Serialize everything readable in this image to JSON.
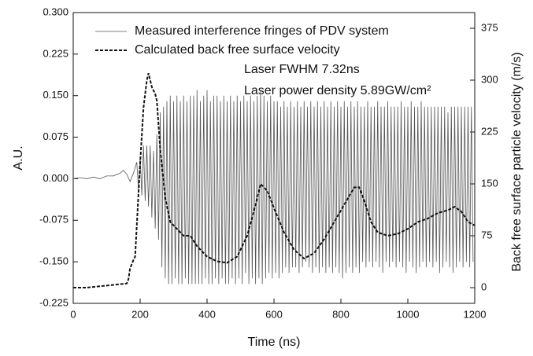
{
  "chart_data": {
    "type": "line",
    "xlabel": "Time (ns)",
    "ylabel": "A.U.",
    "y2label": "Back free surface particle velocity (m/s)",
    "annotations": [
      "Laser FWHM 7.32ns",
      "Laser power density 5.89GW/cm²"
    ],
    "xlim": [
      0,
      1200
    ],
    "xticks": [
      0,
      200,
      400,
      600,
      800,
      1000,
      1200
    ],
    "ylim": [
      -0.225,
      0.3
    ],
    "yticks": [
      -0.225,
      {
        "value": -0.15,
        "label": "-0.150"
      },
      -0.075,
      {
        "value": 0,
        "label": "0.000"
      },
      0.075,
      {
        "value": 0.15,
        "label": "0.150"
      },
      0.225,
      {
        "value": 0.3,
        "label": "0.300"
      }
    ],
    "y2lim": [
      -22.7,
      397.7
    ],
    "y2ticks": [
      0,
      75,
      150,
      225,
      300,
      375
    ],
    "legend": "upper left",
    "series": [
      {
        "name": "Measured interference fringes of PDV system",
        "color": "#555555",
        "dashed": false,
        "axis": "y",
        "x": [
          0,
          20,
          40,
          60,
          80,
          100,
          120,
          140,
          150,
          160,
          170,
          180,
          190,
          195,
          200,
          205,
          210,
          215,
          220,
          225,
          230,
          235,
          240,
          245,
          250,
          255,
          260,
          265,
          270,
          275,
          280,
          285,
          290,
          295,
          300,
          305,
          310,
          315,
          320,
          325,
          330,
          335,
          340,
          345,
          350,
          355,
          360,
          365,
          370,
          375,
          380,
          385,
          390,
          395,
          400,
          405,
          410,
          415,
          420,
          425,
          430,
          435,
          440,
          445,
          450,
          455,
          460,
          465,
          470,
          475,
          480,
          485,
          490,
          495,
          500,
          505,
          510,
          515,
          520,
          525,
          530,
          535,
          540,
          545,
          550,
          555,
          560,
          565,
          570,
          575,
          580,
          585,
          590,
          595,
          600,
          605,
          610,
          615,
          620,
          625,
          630,
          635,
          640,
          645,
          650,
          655,
          660,
          665,
          670,
          675,
          680,
          685,
          690,
          695,
          700,
          705,
          710,
          715,
          720,
          725,
          730,
          735,
          740,
          745,
          750,
          755,
          760,
          765,
          770,
          775,
          780,
          785,
          790,
          795,
          800,
          805,
          810,
          815,
          820,
          825,
          830,
          835,
          840,
          845,
          850,
          855,
          860,
          865,
          870,
          875,
          880,
          885,
          890,
          895,
          900,
          905,
          910,
          915,
          920,
          925,
          930,
          935,
          940,
          945,
          950,
          955,
          960,
          965,
          970,
          975,
          980,
          985,
          990,
          995,
          1000,
          1005,
          1010,
          1015,
          1020,
          1025,
          1030,
          1035,
          1040,
          1045,
          1050,
          1055,
          1060,
          1065,
          1070,
          1075,
          1080,
          1085,
          1090,
          1095,
          1100,
          1105,
          1110,
          1115,
          1120,
          1125,
          1130,
          1135,
          1140,
          1145,
          1150,
          1155,
          1160,
          1165,
          1170,
          1175,
          1180,
          1185,
          1190,
          1195
        ],
        "values": [
          0.0,
          0.002,
          0.0,
          0.003,
          0.0,
          0.005,
          0.005,
          0.01,
          0.015,
          0.008,
          -0.005,
          0.01,
          0.03,
          -0.02,
          0.04,
          -0.03,
          0.06,
          -0.04,
          0.06,
          -0.05,
          0.06,
          -0.07,
          0.05,
          -0.09,
          0.08,
          -0.11,
          0.12,
          -0.16,
          0.13,
          -0.18,
          0.14,
          -0.19,
          0.15,
          -0.19,
          0.14,
          -0.18,
          0.15,
          -0.19,
          0.14,
          -0.19,
          0.15,
          -0.18,
          0.14,
          -0.19,
          0.15,
          -0.19,
          0.15,
          -0.19,
          0.16,
          -0.19,
          0.14,
          -0.19,
          0.15,
          -0.18,
          0.16,
          -0.19,
          0.14,
          -0.19,
          0.15,
          -0.18,
          0.15,
          -0.19,
          0.14,
          -0.18,
          0.15,
          -0.19,
          0.14,
          -0.19,
          0.15,
          -0.18,
          0.14,
          -0.19,
          0.15,
          -0.18,
          0.14,
          -0.19,
          0.15,
          -0.17,
          0.14,
          -0.19,
          0.15,
          -0.18,
          0.14,
          -0.19,
          0.15,
          -0.18,
          0.16,
          -0.19,
          0.15,
          -0.18,
          0.14,
          -0.17,
          0.15,
          -0.18,
          0.14,
          -0.17,
          0.14,
          -0.18,
          0.13,
          -0.17,
          0.14,
          -0.16,
          0.13,
          -0.17,
          0.14,
          -0.16,
          0.13,
          -0.16,
          0.14,
          -0.17,
          0.13,
          -0.16,
          0.14,
          -0.15,
          0.13,
          -0.16,
          0.14,
          -0.17,
          0.13,
          -0.16,
          0.14,
          -0.17,
          0.13,
          -0.16,
          0.14,
          -0.17,
          0.13,
          -0.16,
          0.14,
          -0.17,
          0.13,
          -0.16,
          0.14,
          -0.17,
          0.13,
          -0.18,
          0.14,
          -0.17,
          0.13,
          -0.16,
          0.14,
          -0.17,
          0.13,
          -0.16,
          0.14,
          -0.17,
          0.13,
          -0.15,
          0.13,
          -0.16,
          0.14,
          -0.15,
          0.13,
          -0.16,
          0.13,
          -0.15,
          0.14,
          -0.16,
          0.13,
          -0.17,
          0.13,
          -0.15,
          0.14,
          -0.16,
          0.13,
          -0.15,
          0.13,
          -0.16,
          0.13,
          -0.15,
          0.14,
          -0.16,
          0.13,
          -0.17,
          0.13,
          -0.15,
          0.14,
          -0.16,
          0.13,
          -0.17,
          0.13,
          -0.16,
          0.14,
          -0.15,
          0.13,
          -0.16,
          0.13,
          -0.15,
          0.13,
          -0.16,
          0.13,
          -0.15,
          0.13,
          -0.17,
          0.13,
          -0.16,
          0.13,
          -0.15,
          0.12,
          -0.16,
          0.13,
          -0.17,
          0.13,
          -0.16,
          0.13,
          -0.15,
          0.13,
          -0.16,
          0.13,
          -0.15,
          0.13,
          -0.16,
          0.13,
          -0.15
        ]
      },
      {
        "name": "Calculated back free surface velocity",
        "color": "#111111",
        "dashed": true,
        "axis": "y2",
        "x": [
          0,
          40,
          80,
          120,
          160,
          165,
          170,
          180,
          185,
          190,
          200,
          210,
          220,
          225,
          235,
          245,
          250,
          260,
          275,
          290,
          310,
          330,
          350,
          370,
          400,
          430,
          460,
          490,
          520,
          545,
          560,
          580,
          600,
          630,
          660,
          690,
          720,
          750,
          780,
          810,
          840,
          855,
          870,
          890,
          910,
          940,
          970,
          1000,
          1030,
          1060,
          1090,
          1120,
          1140,
          1160,
          1180,
          1200
        ],
        "values": [
          0,
          0,
          2,
          4,
          6,
          12,
          28,
          40,
          45,
          90,
          180,
          260,
          300,
          310,
          290,
          280,
          270,
          200,
          130,
          95,
          85,
          75,
          75,
          60,
          45,
          38,
          36,
          45,
          75,
          120,
          150,
          140,
          115,
          80,
          55,
          42,
          50,
          70,
          95,
          120,
          145,
          145,
          125,
          95,
          80,
          75,
          78,
          85,
          95,
          100,
          108,
          112,
          117,
          110,
          95,
          90
        ]
      }
    ]
  }
}
